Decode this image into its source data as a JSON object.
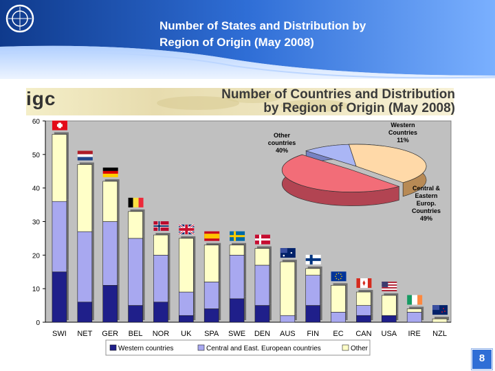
{
  "slide": {
    "title_line1": "Number of States and Distribution by",
    "title_line2": "Region of Origin (May 2008)",
    "page_number": "8"
  },
  "banner": {
    "logo_text": "igc",
    "title_line1": "Number of Countries and Distribution",
    "title_line2": "by Region of Origin (May 2008)"
  },
  "colors": {
    "header_blue": "#1f5fbf",
    "western": "#1f1f8a",
    "central": "#a8a8f0",
    "other": "#ffffc8",
    "plot_bg": "#c0c0c0",
    "pie_other": "#ffd9a8",
    "pie_central": "#f26d78",
    "pie_western": "#aab6f5"
  },
  "chart_data": [
    {
      "type": "bar",
      "subtype": "stacked",
      "categories": [
        "SWI",
        "NET",
        "GER",
        "BEL",
        "NOR",
        "UK",
        "SPA",
        "SWE",
        "DEN",
        "AUS",
        "FIN",
        "EC",
        "CAN",
        "USA",
        "IRE",
        "NZL"
      ],
      "series": [
        {
          "name": "Western countries",
          "values": [
            15,
            6,
            11,
            5,
            6,
            2,
            4,
            7,
            5,
            0,
            5,
            0,
            2,
            2,
            0,
            0
          ]
        },
        {
          "name": "Central and East. European countries",
          "values": [
            21,
            21,
            19,
            20,
            14,
            7,
            8,
            13,
            12,
            2,
            9,
            3,
            3,
            0,
            3,
            0
          ]
        },
        {
          "name": "Other",
          "values": [
            20,
            20,
            12,
            8,
            6,
            16,
            11,
            3,
            5,
            16,
            2,
            8,
            4,
            6,
            1,
            1
          ]
        }
      ],
      "yticks": [
        "0",
        "10",
        "20",
        "30",
        "40",
        "50",
        "60"
      ],
      "ylim": [
        0,
        60
      ],
      "legend_position": "bottom"
    },
    {
      "type": "pie",
      "labels": [
        "Other countries",
        "Central & Eastern Europ. Countries",
        "Western Countries"
      ],
      "values": [
        40,
        49,
        11
      ],
      "label_lines": [
        [
          "Other",
          "countries",
          "40%"
        ],
        [
          "Central &",
          "Eastern",
          "Europ.",
          "Countries",
          "49%"
        ],
        [
          "Western",
          "Countries",
          "11%"
        ]
      ]
    }
  ]
}
